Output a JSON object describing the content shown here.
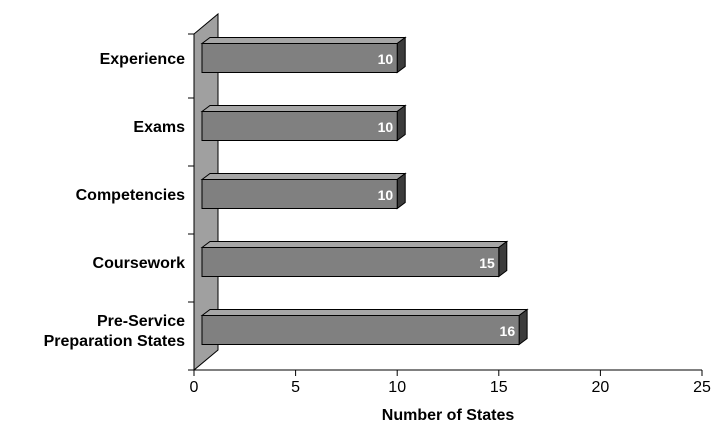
{
  "chart_data": {
    "type": "bar",
    "orientation": "horizontal",
    "style": "3d",
    "categories": [
      "Experience",
      "Exams",
      "Competencies",
      "Coursework",
      "Pre-Service Preparation States"
    ],
    "category_lines": [
      [
        "Experience"
      ],
      [
        "Exams"
      ],
      [
        "Competencies"
      ],
      [
        "Coursework"
      ],
      [
        "Pre-Service",
        "Preparation States"
      ]
    ],
    "values": [
      10,
      10,
      10,
      15,
      16
    ],
    "value_labels": [
      "10",
      "10",
      "10",
      "15",
      "16"
    ],
    "xlabel": "Number of States",
    "ylabel": "",
    "xlim": [
      0,
      25
    ],
    "xticks": [
      "0",
      "5",
      "10",
      "15",
      "20",
      "25"
    ],
    "grid": false,
    "legend": "none",
    "colors": {
      "bar_front": "#808080",
      "bar_top": "#a6a6a6",
      "bar_side": "#3c3c3c",
      "back_wall": "#a0a0a0",
      "axis": "#000000"
    }
  }
}
